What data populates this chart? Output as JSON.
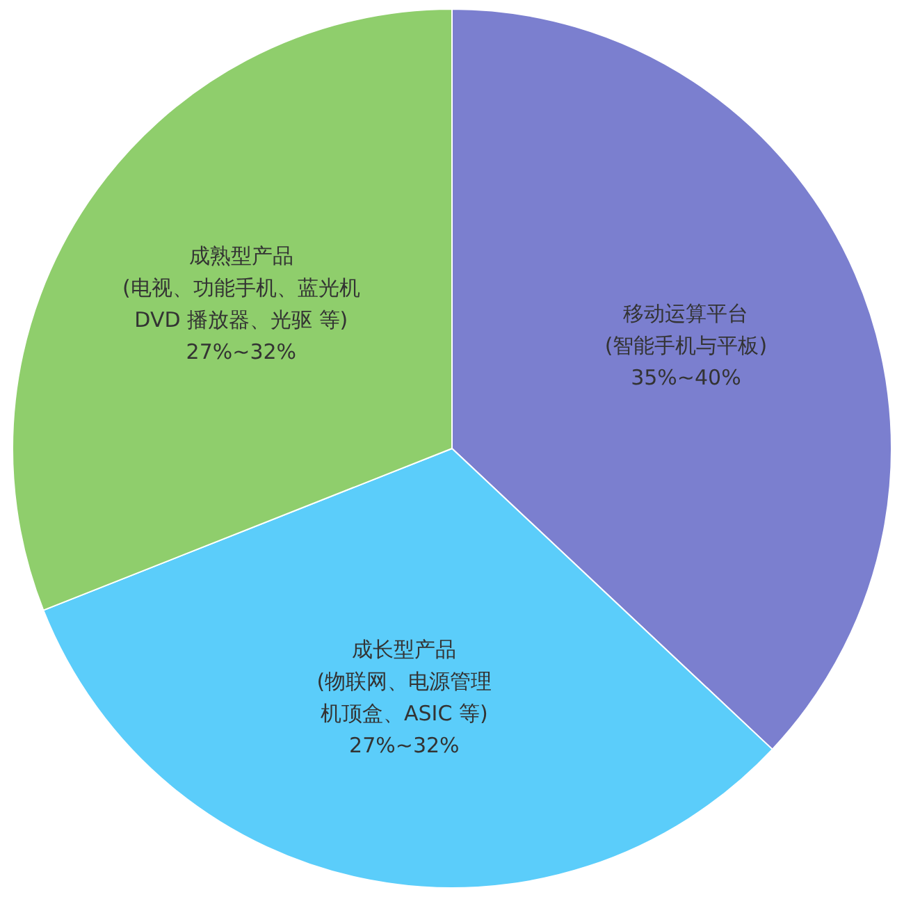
{
  "chart_data": {
    "type": "pie",
    "categories": [
      "移动运算平台(智能手机与平板)",
      "成长型产品(物联网、电源管理机顶盒、ASIC 等)",
      "成熟型产品(电视、功能手机、蓝光机DVD 播放器、光驱 等)"
    ],
    "values": [
      37,
      32,
      31
    ],
    "annotations": [
      "35%~40%",
      "27%~32%",
      "27%~32%"
    ],
    "colors": [
      "#7b7fcf",
      "#5bcdfa",
      "#8fce6c"
    ],
    "legend": false
  }
}
